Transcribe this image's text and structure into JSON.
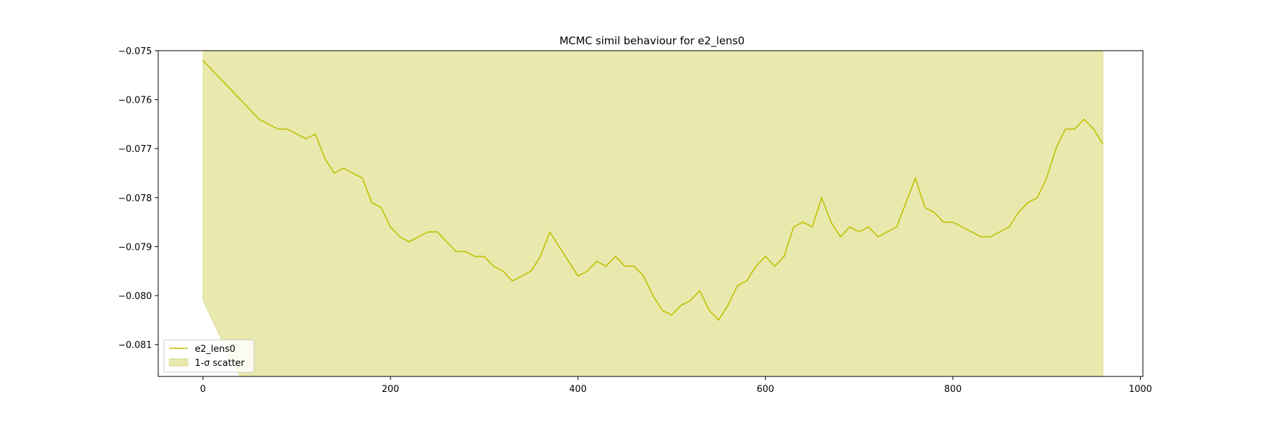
{
  "chart_data": {
    "type": "line",
    "title": "MCMC simil behaviour for e2_lens0",
    "xlabel": "",
    "ylabel": "",
    "xlim": [
      -47.7,
      1002.7
    ],
    "ylim": [
      -0.08165,
      -0.075
    ],
    "x_ticks": [
      0,
      200,
      400,
      600,
      800,
      1000
    ],
    "x_tick_labels": [
      "0",
      "200",
      "400",
      "600",
      "800",
      "1000"
    ],
    "y_ticks": [
      -0.075,
      -0.076,
      -0.077,
      -0.078,
      -0.079,
      -0.08,
      -0.081
    ],
    "y_tick_labels": [
      "−0.075",
      "−0.076",
      "−0.077",
      "−0.078",
      "−0.079",
      "−0.080",
      "−0.081"
    ],
    "grid": false,
    "legend_placement": "lower-left",
    "colors": {
      "line": "#bfbf00",
      "band": "#e9e9ad"
    },
    "series": [
      {
        "name": "e2_lens0",
        "kind": "line",
        "x": [
          0,
          10,
          20,
          30,
          40,
          50,
          60,
          70,
          80,
          90,
          100,
          110,
          120,
          130,
          140,
          150,
          160,
          170,
          180,
          190,
          200,
          210,
          220,
          230,
          240,
          250,
          260,
          270,
          280,
          290,
          300,
          310,
          320,
          330,
          340,
          350,
          360,
          370,
          380,
          390,
          400,
          410,
          420,
          430,
          440,
          450,
          460,
          470,
          480,
          490,
          500,
          510,
          520,
          530,
          540,
          550,
          560,
          570,
          580,
          590,
          600,
          610,
          620,
          630,
          640,
          650,
          660,
          670,
          680,
          690,
          700,
          710,
          720,
          730,
          740,
          750,
          760,
          770,
          780,
          790,
          800,
          810,
          820,
          830,
          840,
          850,
          860,
          870,
          880,
          890,
          900,
          910,
          920,
          930,
          940,
          950,
          960
        ],
        "y": [
          -0.0752,
          -0.0754,
          -0.0756,
          -0.0758,
          -0.076,
          -0.0762,
          -0.0764,
          -0.0765,
          -0.0766,
          -0.0766,
          -0.0767,
          -0.0768,
          -0.0767,
          -0.0772,
          -0.0775,
          -0.0774,
          -0.0775,
          -0.0776,
          -0.0781,
          -0.0782,
          -0.0786,
          -0.0788,
          -0.0789,
          -0.0788,
          -0.0787,
          -0.0787,
          -0.0789,
          -0.0791,
          -0.0791,
          -0.0792,
          -0.0792,
          -0.0794,
          -0.0795,
          -0.0797,
          -0.0796,
          -0.0795,
          -0.0792,
          -0.0787,
          -0.079,
          -0.0793,
          -0.0796,
          -0.0795,
          -0.0793,
          -0.0794,
          -0.0792,
          -0.0794,
          -0.0794,
          -0.0796,
          -0.08,
          -0.0803,
          -0.0804,
          -0.0802,
          -0.0801,
          -0.0799,
          -0.0803,
          -0.0805,
          -0.0802,
          -0.0798,
          -0.0797,
          -0.0794,
          -0.0792,
          -0.0794,
          -0.0792,
          -0.0786,
          -0.0785,
          -0.0786,
          -0.078,
          -0.0785,
          -0.0788,
          -0.0786,
          -0.0787,
          -0.0786,
          -0.0788,
          -0.0787,
          -0.0786,
          -0.0781,
          -0.0776,
          -0.0782,
          -0.0783,
          -0.0785,
          -0.0785,
          -0.0786,
          -0.0787,
          -0.0788,
          -0.0788,
          -0.0787,
          -0.0786,
          -0.0783,
          -0.0781,
          -0.078,
          -0.0776,
          -0.077,
          -0.0766,
          -0.0766,
          -0.0764,
          -0.0766,
          -0.0769
        ]
      },
      {
        "name": "1-σ scatter",
        "kind": "band",
        "x": [
          0,
          5,
          10,
          15,
          20,
          25,
          30,
          35,
          40,
          45,
          50,
          960
        ],
        "lower": [
          -0.0801,
          -0.0803,
          -0.0805,
          -0.0807,
          -0.0809,
          -0.0811,
          -0.0813,
          -0.0815,
          -0.0817,
          -0.0819,
          -0.0821,
          -0.0821
        ],
        "upper": [
          -0.075,
          -0.075,
          -0.075,
          -0.075,
          -0.075,
          -0.075,
          -0.075,
          -0.075,
          -0.075,
          -0.075,
          -0.075,
          -0.075
        ]
      }
    ]
  }
}
